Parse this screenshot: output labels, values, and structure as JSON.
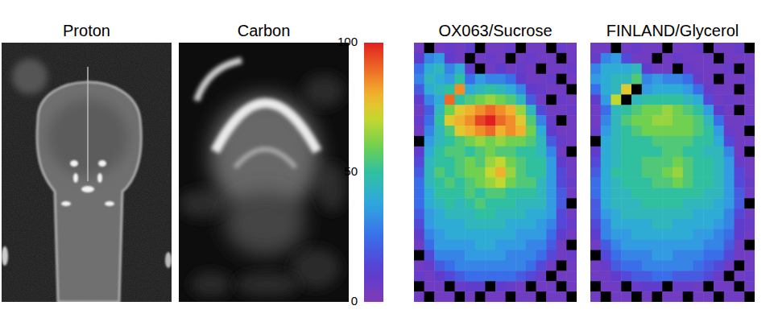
{
  "chart_data": [
    {
      "type": "image",
      "title": "Proton"
    },
    {
      "type": "image",
      "title": "Carbon"
    },
    {
      "type": "heatmap",
      "title": "OX063/Sucrose",
      "cells": [
        [
          5,
          null,
          5,
          8,
          5,
          10,
          null,
          5,
          5,
          8,
          null,
          5,
          5,
          null,
          8,
          5
        ],
        [
          10,
          30,
          35,
          10,
          5,
          null,
          5,
          8,
          5,
          null,
          5,
          8,
          5,
          5,
          null,
          5
        ],
        [
          25,
          40,
          45,
          30,
          40,
          10,
          null,
          5,
          10,
          5,
          8,
          5,
          null,
          5,
          5,
          8
        ],
        [
          30,
          45,
          40,
          35,
          50,
          25,
          35,
          30,
          30,
          25,
          10,
          5,
          5,
          8,
          null,
          5
        ],
        [
          20,
          40,
          45,
          50,
          85,
          40,
          45,
          50,
          45,
          40,
          30,
          10,
          8,
          5,
          5,
          null
        ],
        [
          10,
          30,
          40,
          90,
          50,
          55,
          60,
          65,
          60,
          55,
          45,
          20,
          5,
          null,
          8,
          5
        ],
        [
          5,
          20,
          45,
          60,
          75,
          80,
          85,
          90,
          85,
          80,
          65,
          45,
          15,
          5,
          5,
          8
        ],
        [
          8,
          25,
          50,
          75,
          80,
          85,
          95,
          100,
          90,
          85,
          75,
          55,
          30,
          8,
          null,
          5
        ],
        [
          5,
          30,
          45,
          55,
          75,
          80,
          85,
          90,
          80,
          85,
          80,
          60,
          40,
          10,
          5,
          5
        ],
        [
          null,
          35,
          45,
          50,
          55,
          60,
          65,
          60,
          65,
          60,
          60,
          55,
          45,
          20,
          8,
          5
        ],
        [
          10,
          40,
          50,
          55,
          55,
          50,
          55,
          60,
          55,
          55,
          50,
          50,
          45,
          30,
          5,
          null
        ],
        [
          15,
          45,
          50,
          50,
          55,
          60,
          55,
          65,
          70,
          60,
          55,
          50,
          50,
          35,
          10,
          5
        ],
        [
          20,
          45,
          55,
          50,
          55,
          60,
          60,
          70,
          80,
          65,
          55,
          50,
          50,
          35,
          15,
          5
        ],
        [
          25,
          45,
          50,
          55,
          50,
          55,
          60,
          65,
          70,
          60,
          55,
          55,
          45,
          35,
          15,
          8
        ],
        [
          25,
          40,
          50,
          50,
          50,
          55,
          50,
          55,
          55,
          50,
          50,
          50,
          45,
          35,
          20,
          5
        ],
        [
          25,
          40,
          45,
          50,
          45,
          50,
          55,
          50,
          50,
          50,
          45,
          45,
          45,
          35,
          20,
          null
        ],
        [
          20,
          35,
          40,
          45,
          45,
          45,
          50,
          50,
          45,
          45,
          45,
          40,
          40,
          35,
          15,
          5
        ],
        [
          15,
          35,
          40,
          40,
          40,
          45,
          45,
          45,
          45,
          40,
          40,
          40,
          35,
          30,
          15,
          8
        ],
        [
          10,
          30,
          35,
          40,
          40,
          40,
          40,
          40,
          40,
          40,
          35,
          35,
          35,
          25,
          10,
          5
        ],
        [
          5,
          25,
          35,
          35,
          35,
          35,
          40,
          40,
          35,
          35,
          35,
          30,
          30,
          20,
          5,
          null
        ],
        [
          null,
          15,
          30,
          30,
          30,
          35,
          35,
          35,
          35,
          30,
          30,
          30,
          25,
          15,
          5,
          8
        ],
        [
          5,
          8,
          20,
          25,
          30,
          30,
          30,
          30,
          30,
          30,
          30,
          25,
          15,
          5,
          null,
          5
        ],
        [
          8,
          5,
          10,
          15,
          20,
          25,
          25,
          25,
          25,
          25,
          20,
          15,
          8,
          null,
          5,
          5
        ],
        [
          null,
          5,
          5,
          null,
          8,
          10,
          10,
          null,
          10,
          8,
          5,
          null,
          5,
          5,
          null,
          5
        ],
        [
          5,
          null,
          5,
          5,
          null,
          5,
          null,
          5,
          5,
          null,
          5,
          5,
          null,
          5,
          5,
          null
        ]
      ]
    },
    {
      "type": "heatmap",
      "title": "FINLAND/Glycerol",
      "cells": [
        [
          5,
          5,
          null,
          5,
          8,
          5,
          5,
          null,
          5,
          5,
          8,
          null,
          5,
          5,
          8,
          null
        ],
        [
          8,
          30,
          35,
          15,
          5,
          5,
          null,
          5,
          8,
          5,
          5,
          5,
          null,
          5,
          5,
          5
        ],
        [
          30,
          40,
          40,
          40,
          45,
          10,
          5,
          5,
          null,
          8,
          5,
          5,
          5,
          8,
          null,
          5
        ],
        [
          35,
          40,
          45,
          45,
          55,
          30,
          35,
          30,
          30,
          25,
          8,
          5,
          null,
          5,
          5,
          8
        ],
        [
          25,
          40,
          45,
          75,
          null,
          35,
          40,
          40,
          40,
          35,
          25,
          8,
          5,
          5,
          null,
          5
        ],
        [
          10,
          35,
          70,
          null,
          45,
          50,
          50,
          50,
          50,
          45,
          40,
          15,
          5,
          8,
          5,
          5
        ],
        [
          5,
          25,
          45,
          50,
          55,
          60,
          60,
          65,
          60,
          55,
          50,
          35,
          10,
          5,
          null,
          5
        ],
        [
          5,
          30,
          45,
          55,
          60,
          60,
          65,
          65,
          60,
          60,
          55,
          45,
          25,
          5,
          5,
          8
        ],
        [
          8,
          35,
          45,
          50,
          55,
          60,
          60,
          60,
          60,
          60,
          55,
          50,
          35,
          8,
          5,
          null
        ],
        [
          null,
          40,
          45,
          50,
          50,
          50,
          55,
          55,
          55,
          55,
          50,
          50,
          40,
          15,
          5,
          5
        ],
        [
          10,
          40,
          45,
          50,
          50,
          50,
          50,
          55,
          55,
          50,
          50,
          45,
          45,
          30,
          5,
          null
        ],
        [
          15,
          40,
          45,
          50,
          50,
          55,
          55,
          55,
          60,
          55,
          50,
          50,
          45,
          35,
          8,
          5
        ],
        [
          20,
          40,
          50,
          50,
          50,
          55,
          55,
          60,
          65,
          55,
          50,
          50,
          45,
          35,
          15,
          5
        ],
        [
          25,
          40,
          45,
          50,
          50,
          50,
          55,
          55,
          60,
          55,
          50,
          50,
          45,
          35,
          15,
          8
        ],
        [
          25,
          40,
          45,
          45,
          50,
          50,
          50,
          50,
          50,
          50,
          50,
          45,
          45,
          35,
          20,
          5
        ],
        [
          20,
          40,
          45,
          45,
          45,
          50,
          50,
          50,
          50,
          45,
          45,
          45,
          40,
          35,
          20,
          null
        ],
        [
          20,
          35,
          40,
          45,
          45,
          45,
          45,
          45,
          45,
          45,
          40,
          40,
          40,
          30,
          15,
          5
        ],
        [
          15,
          30,
          40,
          40,
          40,
          40,
          45,
          45,
          40,
          40,
          40,
          40,
          35,
          30,
          10,
          8
        ],
        [
          10,
          30,
          35,
          35,
          40,
          40,
          40,
          40,
          40,
          40,
          35,
          35,
          30,
          25,
          10,
          5
        ],
        [
          5,
          20,
          30,
          35,
          35,
          35,
          35,
          35,
          35,
          35,
          35,
          30,
          30,
          20,
          5,
          null
        ],
        [
          null,
          15,
          25,
          30,
          30,
          30,
          35,
          35,
          30,
          30,
          30,
          25,
          25,
          15,
          5,
          5
        ],
        [
          5,
          8,
          20,
          25,
          25,
          30,
          30,
          30,
          30,
          30,
          25,
          20,
          15,
          5,
          null,
          5
        ],
        [
          5,
          5,
          10,
          15,
          20,
          20,
          25,
          25,
          20,
          20,
          20,
          15,
          8,
          null,
          5,
          8
        ],
        [
          null,
          5,
          5,
          null,
          8,
          10,
          10,
          null,
          8,
          8,
          5,
          null,
          5,
          5,
          null,
          5
        ],
        [
          5,
          null,
          5,
          5,
          null,
          5,
          null,
          5,
          5,
          null,
          5,
          5,
          null,
          5,
          5,
          null
        ]
      ]
    }
  ],
  "colorbar": {
    "range": [
      0,
      100
    ],
    "ticks": [
      0,
      50,
      100
    ]
  }
}
